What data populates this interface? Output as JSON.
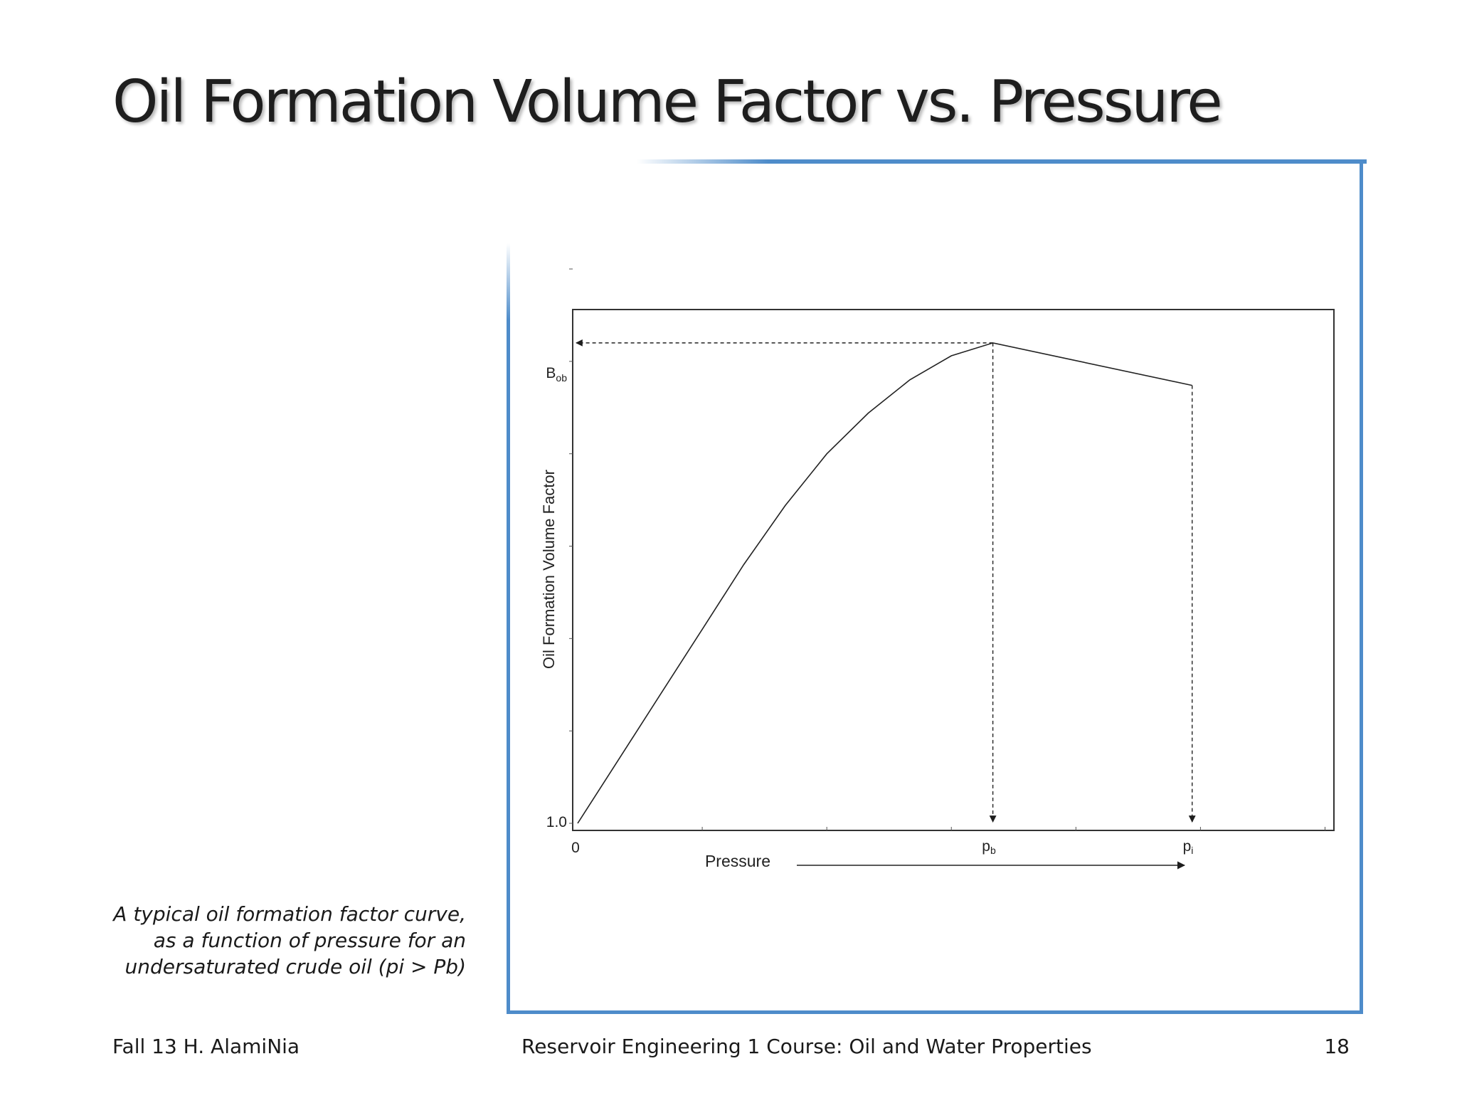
{
  "slide": {
    "title": "Oil Formation Volume Factor vs. Pressure",
    "caption_lines": [
      "A typical oil formation factor curve,",
      "as a function of pressure for an",
      "undersaturated crude oil (pi > Pb)"
    ],
    "footer_left": "Fall 13 H. AlamiNia",
    "footer_center": "Reservoir Engineering 1 Course: Oil and Water Properties",
    "footer_right": "18"
  },
  "colors": {
    "frame_accent": "#4e8cca",
    "ink": "#1e1e1e"
  },
  "chart_data": {
    "type": "line",
    "title": "",
    "xlabel": "Pressure",
    "ylabel": "Oil Formation Volume Factor",
    "x_tick_labels": [
      "0",
      "pb",
      "pi"
    ],
    "y_tick_labels": [
      "1.0",
      "Bob"
    ],
    "xlim": [
      0,
      1.83
    ],
    "ylim": [
      1.0,
      1.3
    ],
    "series": [
      {
        "x": [
          0.0,
          0.1,
          0.2,
          0.3,
          0.4,
          0.5,
          0.6,
          0.7,
          0.8,
          0.9,
          1.0,
          1.48
        ],
        "y": [
          1.0,
          1.035,
          1.07,
          1.105,
          1.14,
          1.172,
          1.2,
          1.222,
          1.24,
          1.253,
          1.26,
          1.237
        ]
      }
    ],
    "annotations": [
      "dashed arrow from bubble point to Bob on y-axis",
      "dashed arrow from bubble point down to pb",
      "dashed arrow from pi down to pi",
      "arrow along Pressure axis label"
    ],
    "grid": false
  }
}
